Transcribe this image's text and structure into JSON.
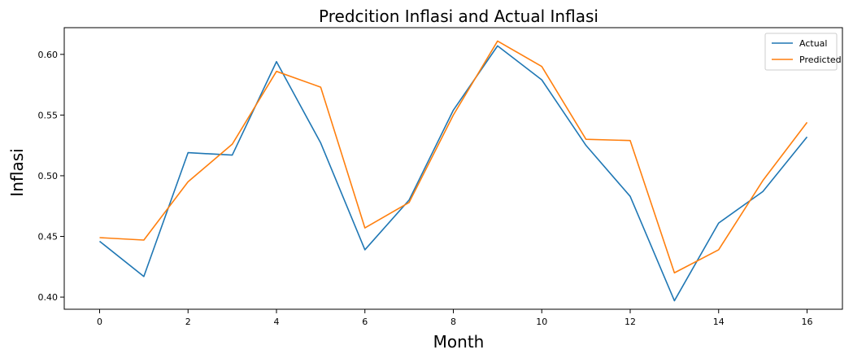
{
  "chart_data": {
    "type": "line",
    "title": "Predcition Inflasi and Actual Inflasi",
    "xlabel": "Month",
    "ylabel": "Inflasi",
    "xlim": [
      -0.8,
      16.8
    ],
    "ylim": [
      0.39,
      0.622
    ],
    "xticks": [
      0,
      2,
      4,
      6,
      8,
      10,
      12,
      14,
      16
    ],
    "yticks": [
      0.4,
      0.45,
      0.5,
      0.55,
      0.6
    ],
    "ytick_labels": [
      "0.40",
      "0.45",
      "0.50",
      "0.55",
      "0.60"
    ],
    "grid": false,
    "legend_position": "top-right",
    "x": [
      0,
      1,
      2,
      3,
      4,
      5,
      6,
      7,
      8,
      9,
      10,
      11,
      12,
      13,
      14,
      15,
      16
    ],
    "series": [
      {
        "name": "Actual",
        "color": "#1f77b4",
        "values": [
          0.446,
          0.417,
          0.519,
          0.517,
          0.594,
          0.527,
          0.439,
          0.48,
          0.554,
          0.607,
          0.579,
          0.525,
          0.483,
          0.397,
          0.461,
          0.487,
          0.532
        ]
      },
      {
        "name": "Predicted",
        "color": "#ff7f0e",
        "values": [
          0.449,
          0.447,
          0.495,
          0.526,
          0.586,
          0.573,
          0.457,
          0.478,
          0.55,
          0.611,
          0.59,
          0.53,
          0.529,
          0.42,
          0.439,
          0.496,
          0.544
        ]
      }
    ]
  }
}
